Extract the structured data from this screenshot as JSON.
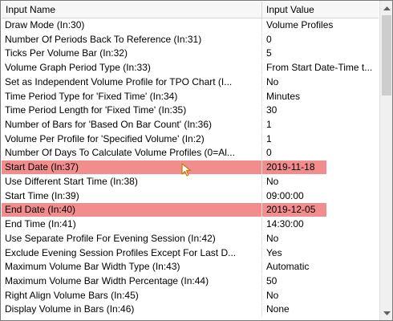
{
  "grid": {
    "header": {
      "name_label": "Input Name",
      "value_label": "Input Value"
    },
    "rows": [
      {
        "name": "Draw Mode   (In:30)",
        "value": "Volume Profiles",
        "highlight": false
      },
      {
        "name": "Number Of Periods Back To Reference   (In:31)",
        "value": "0",
        "highlight": false
      },
      {
        "name": "Ticks Per Volume Bar   (In:32)",
        "value": "5",
        "highlight": false
      },
      {
        "name": "Volume Graph Period Type   (In:33)",
        "value": "From Start Date-Time t...",
        "highlight": false
      },
      {
        "name": "Set as Independent Volume Profile for TPO Chart   (I...",
        "value": "No",
        "highlight": false
      },
      {
        "name": "Time Period Type for 'Fixed Time'   (In:34)",
        "value": "Minutes",
        "highlight": false
      },
      {
        "name": "Time Period Length for 'Fixed Time'   (In:35)",
        "value": "30",
        "highlight": false
      },
      {
        "name": "Number of Bars for 'Based On Bar Count'   (In:36)",
        "value": "1",
        "highlight": false
      },
      {
        "name": "Volume Per Profile for 'Specified Volume'   (In:2)",
        "value": "1",
        "highlight": false
      },
      {
        "name": "Number Of Days To Calculate Volume Profiles (0=Al...",
        "value": "0",
        "highlight": false
      },
      {
        "name": "Start Date   (In:37)",
        "value": "2019-11-18",
        "highlight": true
      },
      {
        "name": "Use Different Start Time   (In:38)",
        "value": "No",
        "highlight": false
      },
      {
        "name": "Start Time   (In:39)",
        "value": "09:00:00",
        "highlight": false
      },
      {
        "name": "End Date   (In:40)",
        "value": "2019-12-05",
        "highlight": true
      },
      {
        "name": "End Time   (In:41)",
        "value": "14:30:00",
        "highlight": false
      },
      {
        "name": "Use Separate Profile For Evening Session   (In:42)",
        "value": "No",
        "highlight": false
      },
      {
        "name": "Exclude Evening Session Profiles Except For Last D...",
        "value": "Yes",
        "highlight": false
      },
      {
        "name": "Maximum Volume Bar Width Type   (In:43)",
        "value": "Automatic",
        "highlight": false
      },
      {
        "name": "Maximum Volume Bar Width Percentage   (In:44)",
        "value": "50",
        "highlight": false
      },
      {
        "name": "Right Align Volume Bars   (In:45)",
        "value": "No",
        "highlight": false
      },
      {
        "name": "Display Volume in Bars   (In:46)",
        "value": "None",
        "highlight": false
      }
    ]
  },
  "scrollbar": {
    "up_icon": "triangle-up-icon",
    "down_icon": "triangle-down-icon",
    "position_fraction": 0.0
  },
  "cursor": {
    "icon": "mouse-pointer-icon"
  },
  "colors": {
    "highlight": "#f28d8d",
    "header_bg": "#f7f7f7",
    "grid_bg": "#ffffff"
  }
}
